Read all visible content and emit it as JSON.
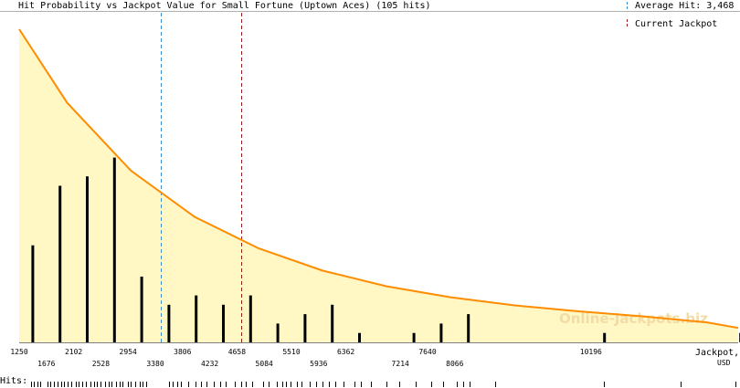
{
  "chart_data": {
    "type": "bar",
    "title": "Hit Probability vs Jackpot Value for Small Fortune (Uptown Aces) (105 hits)",
    "xlabel": "Jackpot, USD",
    "xlabel_lines": [
      "Jackpot,",
      "USD"
    ],
    "hits_label": "Hits:",
    "xlim": [
      1250,
      12500
    ],
    "ylim": [
      0,
      100
    ],
    "grid": false,
    "x_ticks_row1": [
      "1250",
      "2102",
      "2954",
      "3806",
      "4658",
      "5510",
      "6362",
      "7640",
      "10196"
    ],
    "x_ticks_row2": [
      "1676",
      "2528",
      "3380",
      "4232",
      "5084",
      "5936",
      "7214",
      "8066"
    ],
    "bars": {
      "x": [
        1463,
        1889,
        2315,
        2741,
        3167,
        3593,
        4019,
        4445,
        4871,
        5297,
        5723,
        6149,
        6575,
        7427,
        7853,
        8279,
        10409,
        12539
      ],
      "values": [
        31,
        50,
        53,
        59,
        21,
        12,
        15,
        12,
        15,
        6,
        9,
        12,
        3,
        3,
        6,
        9,
        3,
        3
      ],
      "color": "#000000"
    },
    "curve": {
      "name": "Hit Probability",
      "x": [
        1250,
        2000,
        3000,
        4000,
        5000,
        6000,
        7000,
        8000,
        9000,
        10000,
        11000,
        12000,
        12500
      ],
      "values": [
        100,
        76.5,
        54.8,
        40.0,
        30.0,
        22.9,
        17.9,
        14.4,
        11.8,
        9.9,
        8.3,
        6.4,
        4.6
      ],
      "color": "#ff8c00",
      "fill": "#fff8c4"
    },
    "reference_lines": [
      {
        "label": "Average Hit: 3,468",
        "x": 3468,
        "color": "#3a8fd0"
      },
      {
        "label": "Current Jackpot",
        "x": 4730,
        "color": "#9b1c1c"
      }
    ],
    "hits_rug": [
      1430,
      1480,
      1530,
      1580,
      1700,
      1740,
      1800,
      1850,
      1905,
      1950,
      2010,
      2060,
      2130,
      2180,
      2240,
      2290,
      2360,
      2420,
      2470,
      2520,
      2600,
      2650,
      2700,
      2770,
      2820,
      2870,
      2950,
      3000,
      3060,
      3130,
      3180,
      3240,
      3600,
      3650,
      3720,
      3780,
      3900,
      4010,
      4100,
      4180,
      4300,
      4400,
      4480,
      4620,
      4720,
      4800,
      4900,
      5060,
      5150,
      5280,
      5360,
      5420,
      5500,
      5600,
      5660,
      5800,
      5900,
      6000,
      6100,
      6200,
      6320,
      6500,
      6600,
      6750,
      7000,
      7200,
      7450,
      7700,
      7880,
      8100,
      8200,
      8300,
      8700,
      10400,
      11600,
      12450
    ],
    "watermark": "Online-Jackpots.biz"
  }
}
